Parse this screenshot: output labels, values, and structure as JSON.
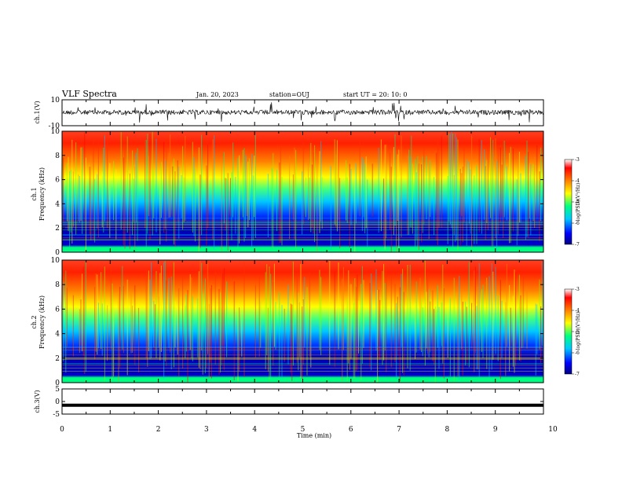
{
  "header": {
    "title": "VLF Spectra",
    "date": "Jan. 20, 2023",
    "station": "station=OUJ",
    "start": "start  UT =   20: 10: 0"
  },
  "colors": {
    "scale": [
      "#000080",
      "#0000ff",
      "#00c8ff",
      "#00ff80",
      "#ffff00",
      "#ff8000",
      "#ff0000",
      "#ffffff"
    ],
    "trace": "#000000",
    "axis": "#000000"
  },
  "chart_data": [
    {
      "type": "line",
      "panel": "ch1-waveform",
      "ylabel": "ch.1(V)",
      "ylim": [
        -10,
        10
      ],
      "yticks": [
        "10",
        "-10"
      ],
      "x": [
        0,
        10
      ],
      "series": [
        {
          "values_approx_baseline": 0
        }
      ]
    },
    {
      "type": "heatmap",
      "panel": "ch1-spectrogram",
      "ylabel": "ch.1",
      "ylabel2": "Frequency (kHz)",
      "ylim": [
        0,
        10
      ],
      "yticks": [
        "10",
        "8",
        "6",
        "4",
        "2",
        "0"
      ],
      "xlim": [
        0,
        10
      ],
      "colorbar": {
        "label": "log(PSD)(V²/Hz)",
        "range": [
          -7,
          -3
        ],
        "ticks": [
          "-3",
          "-4",
          "-5",
          "-6",
          "-7"
        ]
      }
    },
    {
      "type": "heatmap",
      "panel": "ch2-spectrogram",
      "ylabel": "ch.2",
      "ylabel2": "Frequency (kHz)",
      "ylim": [
        0,
        10
      ],
      "yticks": [
        "10",
        "8",
        "6",
        "4",
        "2",
        "0"
      ],
      "xlim": [
        0,
        10
      ],
      "colorbar": {
        "label": "log(PSD)(V²/Hz)",
        "range": [
          -7,
          -3
        ],
        "ticks": [
          "-3",
          "-4",
          "-5",
          "-6",
          "-7"
        ]
      }
    },
    {
      "type": "line",
      "panel": "ch3-waveform",
      "ylabel": "ch.3(V)",
      "ylim": [
        -5,
        5
      ],
      "yticks": [
        "5",
        "0",
        "-5"
      ],
      "series": [
        {
          "values_approx_constant": -1.5
        }
      ]
    }
  ],
  "xaxis": {
    "label": "Time (min)",
    "ticks": [
      "0",
      "1",
      "2",
      "3",
      "4",
      "5",
      "6",
      "7",
      "8",
      "9",
      "10"
    ]
  }
}
